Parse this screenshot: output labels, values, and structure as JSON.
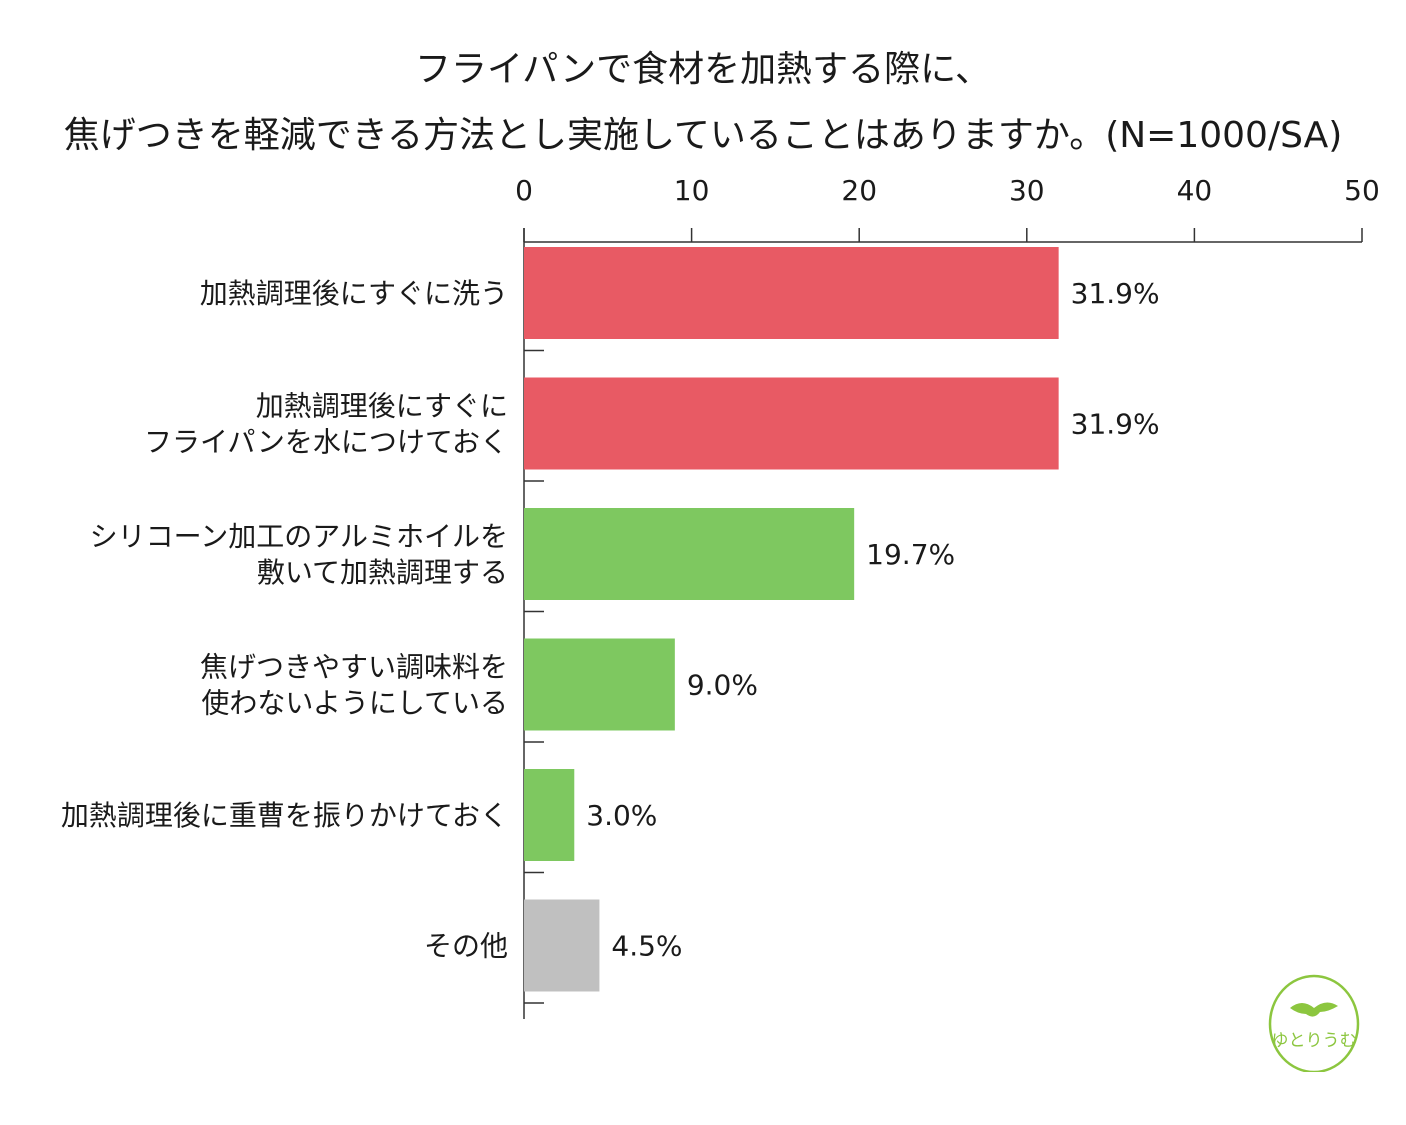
{
  "title": {
    "line1": "フライパンで食材を加熱する際に、",
    "line2": "焦げつきを軽減できる方法とし実施していることはありますか。(N=1000/SA)"
  },
  "chart_data": {
    "type": "bar",
    "orientation": "horizontal",
    "xlim": [
      0,
      50
    ],
    "ticks": [
      0,
      10,
      20,
      30,
      40,
      50
    ],
    "grid": false,
    "categories": [
      [
        "加熱調理後にすぐに洗う"
      ],
      [
        "加熱調理後にすぐに",
        "フライパンを水につけておく"
      ],
      [
        "シリコーン加工のアルミホイルを",
        "敷いて加熱調理する"
      ],
      [
        "焦げつきやすい調味料を",
        "使わないようにしている"
      ],
      [
        "加熱調理後に重曹を振りかけておく"
      ],
      [
        "その他"
      ]
    ],
    "values": [
      31.9,
      31.9,
      19.7,
      9.0,
      3.0,
      4.5
    ],
    "value_labels": [
      "31.9%",
      "31.9%",
      "19.7%",
      "9.0%",
      "3.0%",
      "4.5%"
    ],
    "colors": [
      "#e85a64",
      "#e85a64",
      "#7ec860",
      "#7ec860",
      "#7ec860",
      "#c0c0c0"
    ]
  },
  "logo": {
    "text": "ゆとりうむ",
    "color": "#8cc63f"
  }
}
